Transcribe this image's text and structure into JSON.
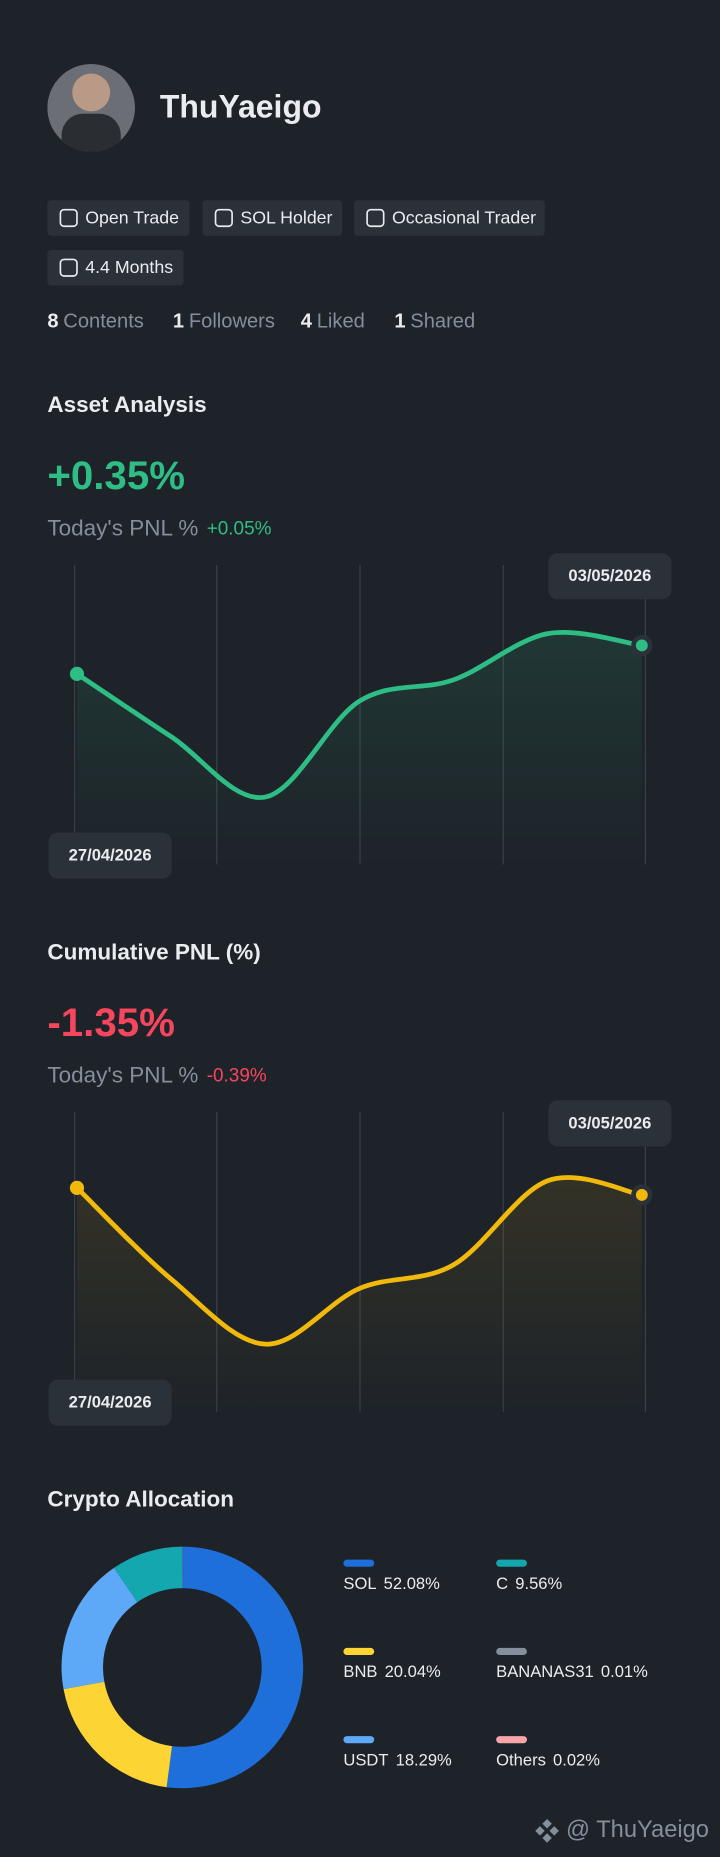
{
  "profile": {
    "name": "ThuYaeigo",
    "tags": [
      "Open Trade",
      "SOL Holder",
      "Occasional Trader",
      "4.4 Months"
    ],
    "stats": [
      {
        "value": 8,
        "label": "Contents"
      },
      {
        "value": 1,
        "label": "Followers"
      },
      {
        "value": 4,
        "label": "Liked"
      },
      {
        "value": 1,
        "label": "Shared"
      }
    ]
  },
  "asset_analysis": {
    "title": "Asset Analysis",
    "value": "+0.35%",
    "pnl_label": "Today's PNL %",
    "pnl_value": "+0.05%",
    "start_date": "27/04/2026",
    "end_date": "03/05/2026",
    "chart": {
      "type": "line",
      "color": "#2ebd85",
      "values": [
        131,
        78,
        27,
        108,
        126,
        165,
        155
      ]
    }
  },
  "cumulative_pnl": {
    "title": "Cumulative PNL (%)",
    "value": "-1.35%",
    "pnl_label": "Today's PNL %",
    "pnl_value": "-0.39%",
    "start_date": "27/04/2026",
    "end_date": "03/05/2026",
    "chart": {
      "type": "line",
      "color": "#f0b90b",
      "values": [
        157,
        80,
        25,
        72,
        92,
        163,
        151
      ]
    }
  },
  "crypto_allocation": {
    "title": "Crypto Allocation",
    "chart": {
      "type": "donut",
      "categories": [
        "SOL",
        "BNB",
        "USDT",
        "C",
        "BANANAS31",
        "Others"
      ],
      "values": [
        52.08,
        20.04,
        18.29,
        9.56,
        0.01,
        0.02
      ],
      "value_labels": [
        "52.08%",
        "20.04%",
        "18.29%",
        "9.56%",
        "0.01%",
        "0.02%"
      ],
      "colors": [
        "#1e6fd9",
        "#fcd535",
        "#5ea9f7",
        "#14a7b0",
        "#848e9c",
        "#f6a5a9"
      ]
    }
  },
  "watermark": "@ ThuYaeigo"
}
